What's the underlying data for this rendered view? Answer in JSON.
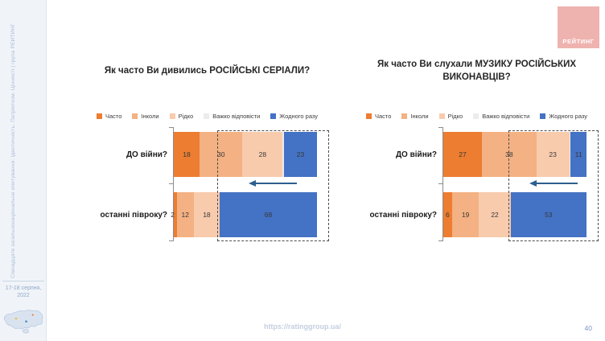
{
  "sidebar": {
    "vertical_text": "Сімнадцяте загальнонаціональне опитування: Ідентичність. Патріотизм. Цінності | група РЕЙТИНГ",
    "date_line1": "17-18 серпня,",
    "date_line2": "2022"
  },
  "logo": {
    "text": "РЕЙТИНГ",
    "bg_color": "#efb3af",
    "text_color": "#ffffff"
  },
  "legend": {
    "items": [
      {
        "label": "Часто",
        "color": "#ED7D31"
      },
      {
        "label": "Інколи",
        "color": "#F4B183"
      },
      {
        "label": "Рідко",
        "color": "#F8CBAD"
      },
      {
        "label": "Важко відповісти",
        "color": "#ECECEC"
      },
      {
        "label": "Жодного разу",
        "color": "#4472C4"
      }
    ]
  },
  "chart_data": [
    {
      "type": "bar",
      "orientation": "horizontal",
      "stacked": true,
      "title": "Як часто Ви дивились РОСІЙСЬКІ СЕРІАЛИ?",
      "categories": [
        "ДО війни?",
        "останні півроку?"
      ],
      "series": [
        {
          "name": "Часто",
          "values": [
            18,
            2
          ]
        },
        {
          "name": "Інколи",
          "values": [
            30,
            12
          ]
        },
        {
          "name": "Рідко",
          "values": [
            28,
            18
          ]
        },
        {
          "name": "Важко відповісти",
          "values": [
            1,
            0
          ]
        },
        {
          "name": "Жодного разу",
          "values": [
            23,
            68
          ]
        }
      ],
      "xlim": [
        0,
        100
      ],
      "legend_position": "top",
      "grid": false,
      "annotations": [
        "dashed-highlight-box-around-never-segment",
        "left-pointing-arrow"
      ]
    },
    {
      "type": "bar",
      "orientation": "horizontal",
      "stacked": true,
      "title": "Як часто Ви слухали МУЗИКУ РОСІЙСЬКИХ ВИКОНАВЦІВ?",
      "categories": [
        "ДО війни?",
        "останні півроку?"
      ],
      "series": [
        {
          "name": "Часто",
          "values": [
            27,
            6
          ]
        },
        {
          "name": "Інколи",
          "values": [
            38,
            19
          ]
        },
        {
          "name": "Рідко",
          "values": [
            23,
            22
          ]
        },
        {
          "name": "Важко відповісти",
          "values": [
            1,
            0
          ]
        },
        {
          "name": "Жодного разу",
          "values": [
            11,
            53
          ]
        }
      ],
      "xlim": [
        0,
        100
      ],
      "legend_position": "top",
      "grid": false,
      "annotations": [
        "dashed-highlight-box-around-never-segment",
        "left-pointing-arrow"
      ]
    }
  ],
  "footer": {
    "url": "https://ratinggroup.ua/",
    "page_number": "40"
  }
}
